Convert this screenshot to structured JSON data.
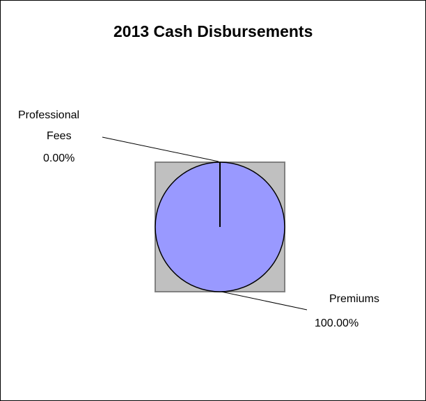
{
  "chart_data": {
    "type": "pie",
    "title": "2013 Cash Disbursements",
    "slices": [
      {
        "label_lines": [
          "Professional",
          "Fees"
        ],
        "value_label": "0.00%",
        "value": 0.0
      },
      {
        "label_lines": [
          "Premiums"
        ],
        "value_label": "100.00%",
        "value": 100.0
      }
    ],
    "colors": {
      "plot_area": "#c0c0c0",
      "plot_border": "#808080",
      "pie_fill": "#9999ff",
      "pie_stroke": "#000000"
    }
  }
}
